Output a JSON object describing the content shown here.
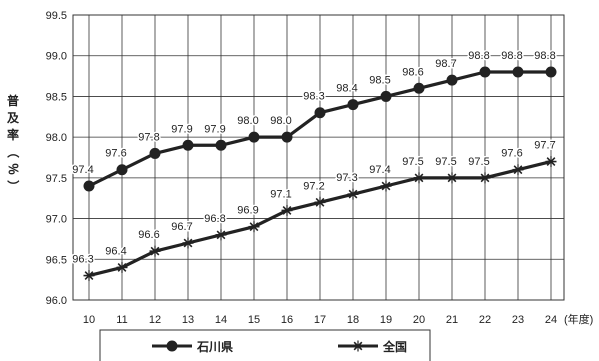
{
  "chart_data": {
    "type": "line",
    "title": "",
    "ylabel": "普及率（％）",
    "xlabel": "",
    "x_unit": "(年度)",
    "categories": [
      "10",
      "11",
      "12",
      "13",
      "14",
      "15",
      "16",
      "17",
      "18",
      "19",
      "20",
      "21",
      "22",
      "23",
      "24"
    ],
    "ylim": [
      96.0,
      99.5
    ],
    "yticks": [
      "96.0",
      "96.5",
      "97.0",
      "97.5",
      "98.0",
      "98.5",
      "99.0",
      "99.5"
    ],
    "grid": true,
    "legend_position": "bottom",
    "series": [
      {
        "name": "石川県",
        "marker": "circle",
        "color": "#222222",
        "values": [
          97.4,
          97.6,
          97.8,
          97.9,
          97.9,
          98.0,
          98.0,
          98.3,
          98.4,
          98.5,
          98.6,
          98.7,
          98.8,
          98.8,
          98.8
        ],
        "labels": [
          "97.4",
          "97.6",
          "97.8",
          "97.9",
          "97.9",
          "98.0",
          "98.0",
          "98.3",
          "98.4",
          "98.5",
          "98.6",
          "98.7",
          "98.8",
          "98.8",
          "98.8"
        ]
      },
      {
        "name": "全国",
        "marker": "asterisk",
        "color": "#222222",
        "values": [
          96.3,
          96.4,
          96.6,
          96.7,
          96.8,
          96.9,
          97.1,
          97.2,
          97.3,
          97.4,
          97.5,
          97.5,
          97.5,
          97.6,
          97.7
        ],
        "labels": [
          "96.3",
          "96.4",
          "96.6",
          "96.7",
          "96.8",
          "96.9",
          "97.1",
          "97.2",
          "97.3",
          "97.4",
          "97.5",
          "97.5",
          "97.5",
          "97.6",
          "97.7"
        ]
      }
    ]
  }
}
